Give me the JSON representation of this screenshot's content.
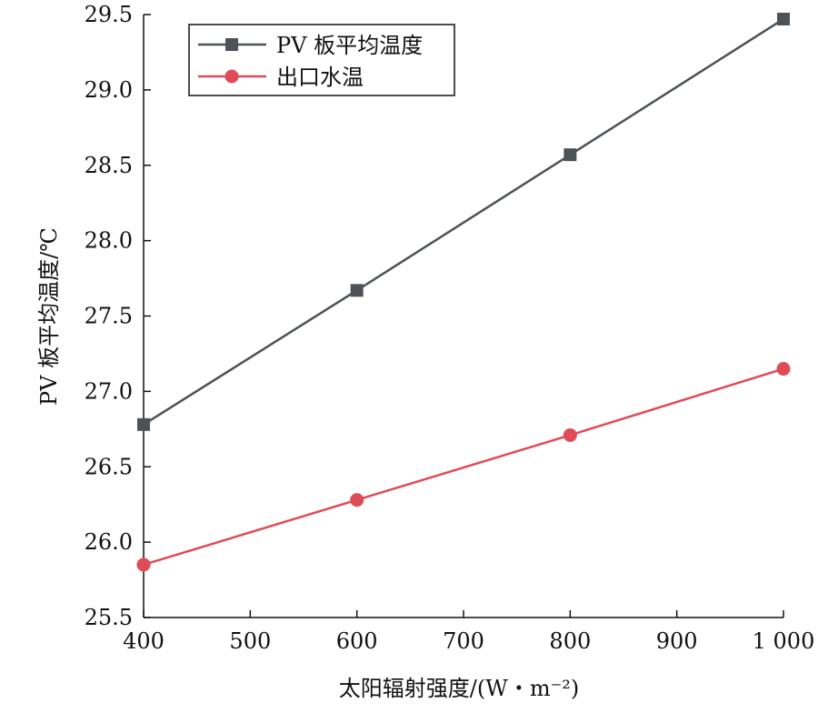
{
  "chart_data": {
    "type": "line",
    "title": "",
    "xlabel": "太阳辐射强度/(W・m⁻²)",
    "ylabel": "PV 板平均温度/℃",
    "xlim": [
      400,
      1000
    ],
    "ylim": [
      25.5,
      29.5
    ],
    "x_ticks": [
      400,
      500,
      600,
      700,
      800,
      900,
      1000
    ],
    "x_tick_labels": [
      "400",
      "500",
      "600",
      "700",
      "800",
      "900",
      "1 000"
    ],
    "y_ticks": [
      25.5,
      26.0,
      26.5,
      27.0,
      27.5,
      28.0,
      28.5,
      29.0,
      29.5
    ],
    "y_tick_labels": [
      "25.5",
      "26.0",
      "26.5",
      "27.0",
      "27.5",
      "28.0",
      "28.5",
      "29.0",
      "29.5"
    ],
    "grid": false,
    "legend_position": "top-left",
    "series": [
      {
        "name": "PV 板平均温度",
        "marker": "square",
        "color": "#4d5256",
        "x": [
          400,
          600,
          800,
          1000
        ],
        "y": [
          26.78,
          27.67,
          28.57,
          29.47
        ]
      },
      {
        "name": "出口水温",
        "marker": "circle",
        "color": "#e04b58",
        "x": [
          400,
          600,
          800,
          1000
        ],
        "y": [
          25.85,
          26.28,
          26.71,
          27.15
        ]
      }
    ]
  }
}
